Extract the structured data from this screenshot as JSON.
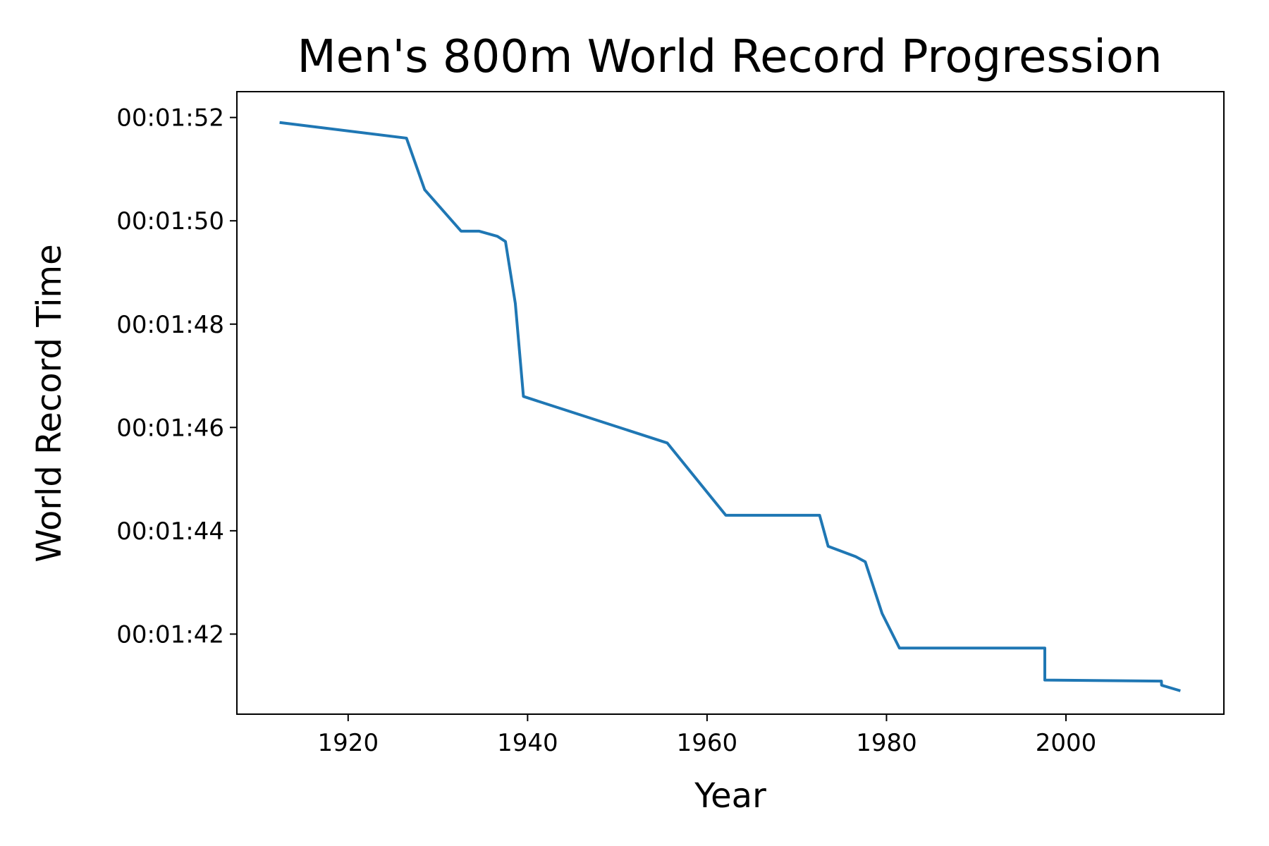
{
  "chart_data": {
    "type": "line",
    "title": "Men's 800m World Record Progression",
    "xlabel": "Year",
    "ylabel": "World Record Time",
    "x_ticks": [
      "1920",
      "1940",
      "1960",
      "1980",
      "2000"
    ],
    "y_ticks": [
      "00:01:52",
      "00:01:50",
      "00:01:48",
      "00:01:46",
      "00:01:44",
      "00:01:42"
    ],
    "xlim": [
      1907.6,
      2017.6
    ],
    "ylim": [
      "00:01:40.45",
      "00:01:52.50"
    ],
    "grid": false,
    "series": [
      {
        "color": "#1f77b4",
        "x": [
          "1912-07-08",
          "1926-07-03",
          "1928-07-14",
          "1932-08-02",
          "1934-07-29",
          "1936-08-20",
          "1937-07-15",
          "1938-08-20",
          "1939-07-15",
          "1955-07-24",
          "1962-02-03",
          "1972-07-18",
          "1973-07-01",
          "1976-07-25",
          "1977-08-20",
          "1979-07-05",
          "1981-06-10",
          "1997-08-24",
          "1997-08-24",
          "2010-08-22",
          "2010-08-29",
          "2012-08-09"
        ],
        "y": [
          "00:01:51.9",
          "00:01:51.6",
          "00:01:50.6",
          "00:01:49.8",
          "00:01:49.8",
          "00:01:49.7",
          "00:01:49.6",
          "00:01:48.4",
          "00:01:46.6",
          "00:01:45.7",
          "00:01:44.3",
          "00:01:44.3",
          "00:01:43.7",
          "00:01:43.5",
          "00:01:43.4",
          "00:01:42.4",
          "00:01:41.73",
          "00:01:41.73",
          "00:01:41.11",
          "00:01:41.09",
          "00:01:41.01",
          "00:01:40.91"
        ]
      }
    ]
  }
}
